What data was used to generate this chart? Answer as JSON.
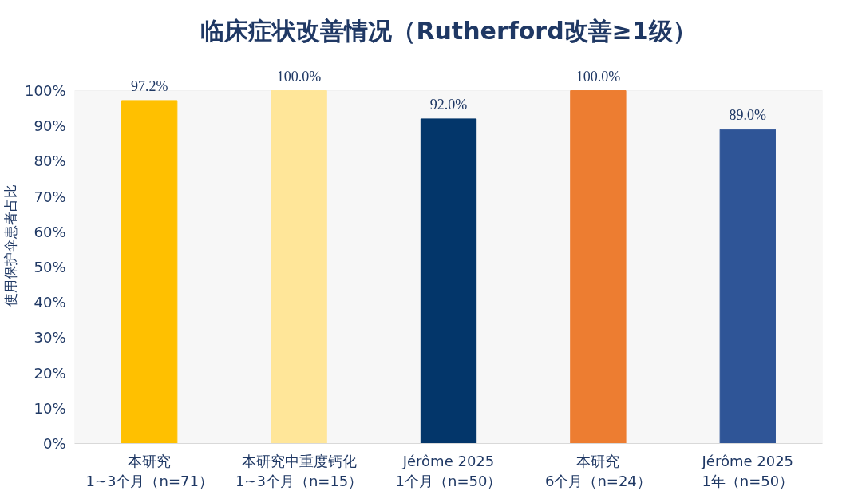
{
  "chart_data": {
    "type": "bar",
    "title": "临床症状改善情况（Rutherford改善≥1级）",
    "ylabel": "使用保护伞患者占比",
    "categories": [
      "本研究\n1~3个月（n=71）",
      "本研究中重度钙化\n1~3个月（n=15）",
      "Jérôme 2025\n1个月（n=50）",
      "本研究\n6个月（n=24）",
      "Jérôme 2025\n1年（n=50）"
    ],
    "values": [
      97.2,
      100.0,
      92.0,
      100.0,
      89.0
    ],
    "colors": [
      "#ffc000",
      "#ffe699",
      "#03366a",
      "#ed7d31",
      "#2f5597"
    ],
    "value_labels": [
      "97.2%",
      "100.0%",
      "92.0%",
      "100.0%",
      "89.0%"
    ],
    "ylim": [
      0,
      100
    ],
    "yticks": [
      {
        "value": 0,
        "label": "0%"
      },
      {
        "value": 10,
        "label": "10%"
      },
      {
        "value": 20,
        "label": "20%"
      },
      {
        "value": 30,
        "label": "30%"
      },
      {
        "value": 40,
        "label": "40%"
      },
      {
        "value": 50,
        "label": "50%"
      },
      {
        "value": 60,
        "label": "60%"
      },
      {
        "value": 70,
        "label": "70%"
      },
      {
        "value": 80,
        "label": "80%"
      },
      {
        "value": 90,
        "label": "90%"
      },
      {
        "value": 100,
        "label": "100%"
      }
    ],
    "grid": false
  }
}
